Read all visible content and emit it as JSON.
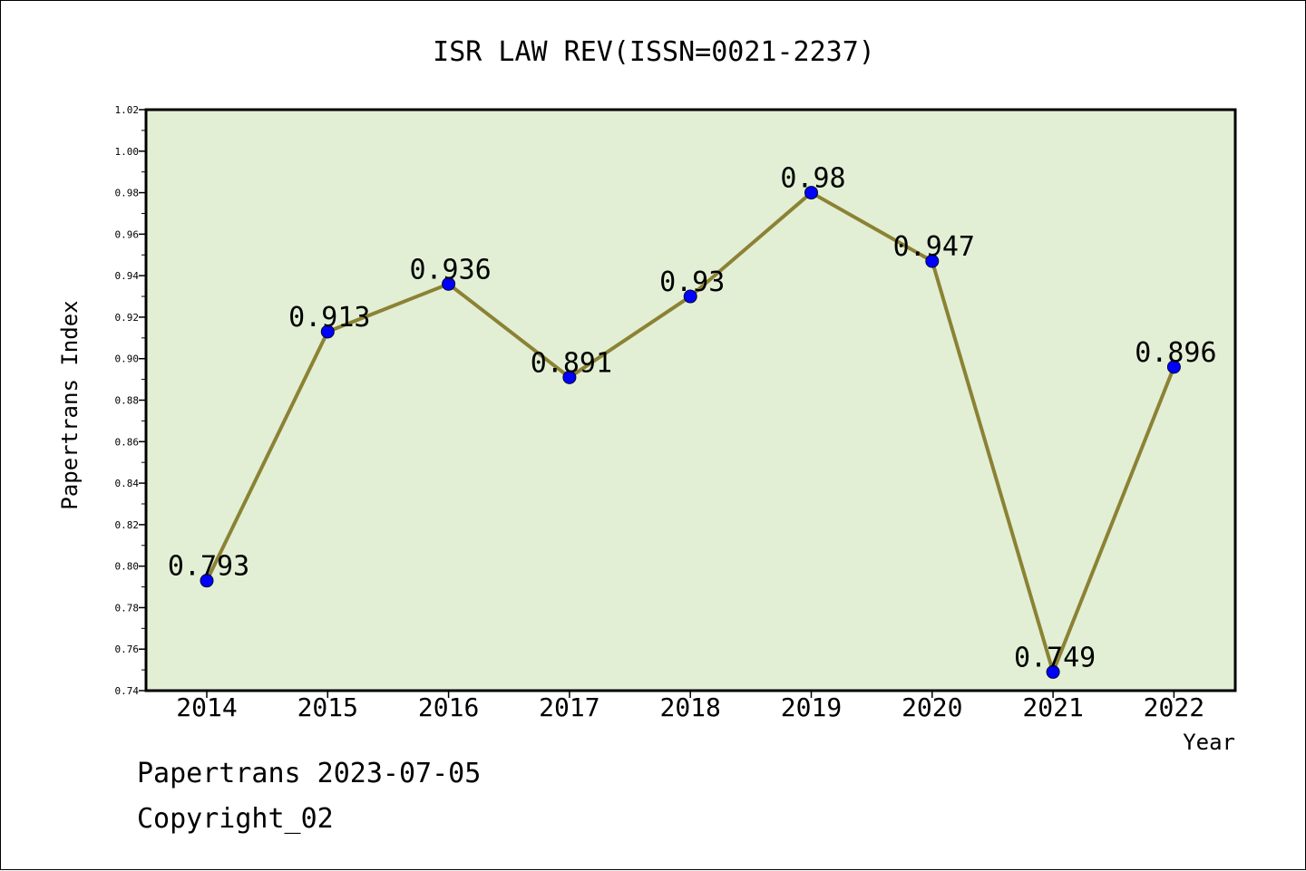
{
  "chart_data": {
    "type": "line",
    "title": "ISR LAW REV(ISSN=0021-2237)",
    "xlabel": "Year",
    "ylabel": "Papertrans Index",
    "categories": [
      "2014",
      "2015",
      "2016",
      "2017",
      "2018",
      "2019",
      "2020",
      "2021",
      "2022"
    ],
    "series": [
      {
        "values": [
          0.793,
          0.913,
          0.936,
          0.891,
          0.93,
          0.98,
          0.947,
          0.749,
          0.896
        ],
        "labels": [
          "0.793",
          "0.913",
          "0.936",
          "0.891",
          "0.93",
          "0.98",
          "0.947",
          "0.749",
          "0.896"
        ]
      }
    ],
    "ylim": [
      0.74,
      1.02
    ],
    "yticks": [
      "0.74",
      "0.76",
      "0.78",
      "0.80",
      "0.82",
      "0.84",
      "0.86",
      "0.88",
      "0.90",
      "0.92",
      "0.94",
      "0.96",
      "0.98",
      "1.00",
      "1.02"
    ],
    "grid": false,
    "colors": {
      "plot_background": "#e2efd5",
      "line": "#8b8234",
      "marker": "#0000ff"
    }
  },
  "footer": {
    "line1": "Papertrans 2023-07-05",
    "line2": "Copyright_02"
  }
}
